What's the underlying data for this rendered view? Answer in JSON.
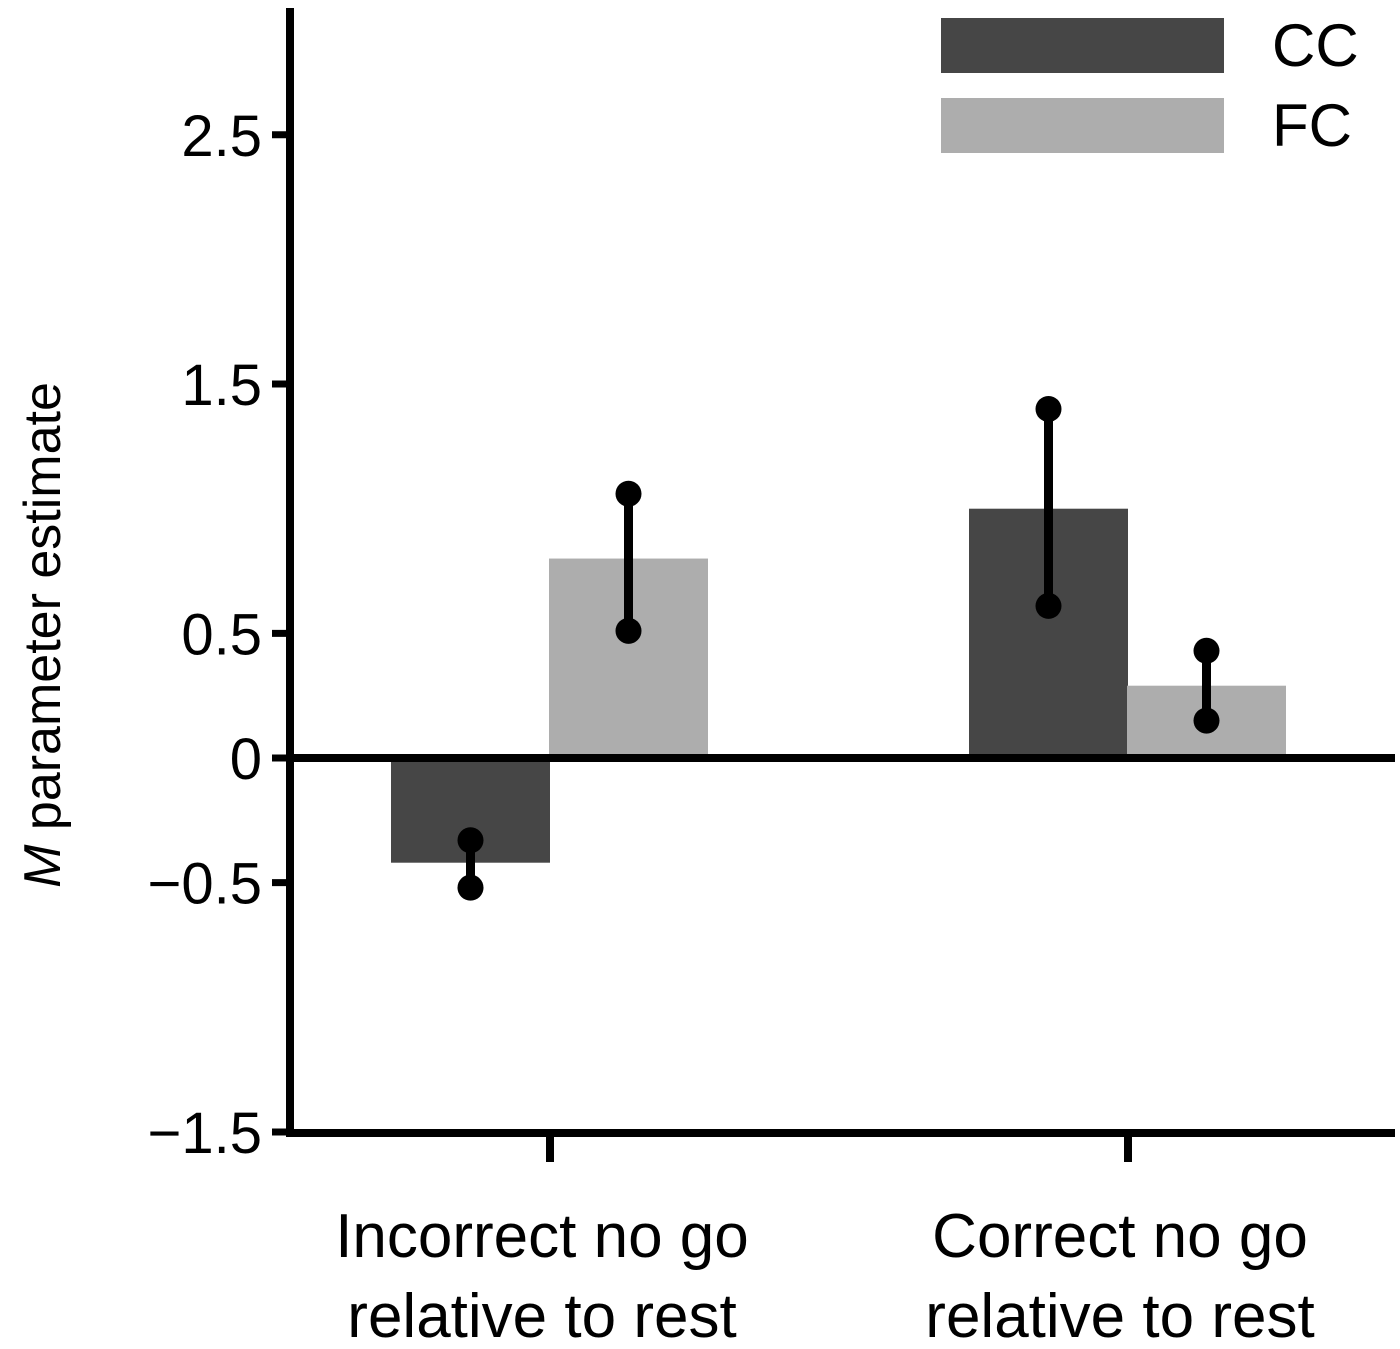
{
  "chart_data": {
    "type": "bar",
    "title": "",
    "xlabel": "",
    "ylabel_italic": "M",
    "ylabel_rest": " parameter estimate",
    "ylim": [
      -1.5,
      3.0
    ],
    "yticks": [
      -1.5,
      -0.5,
      0,
      0.5,
      1.5,
      2.5
    ],
    "ytick_labels": [
      "−1.5",
      "−0.5",
      "0",
      "0.5",
      "1.5",
      "2.5"
    ],
    "grid": false,
    "legend_position": "top-right",
    "categories": [
      [
        "Incorrect no go",
        "relative to rest"
      ],
      [
        "Correct no go",
        "relative to rest"
      ]
    ],
    "series": [
      {
        "name": "CC",
        "color": "#464646",
        "values": [
          -0.42,
          1.0
        ],
        "error_low": [
          -0.52,
          0.61
        ],
        "error_high": [
          -0.33,
          1.4
        ]
      },
      {
        "name": "FC",
        "color": "#adadad",
        "values": [
          0.8,
          0.29
        ],
        "error_low": [
          0.51,
          0.15
        ],
        "error_high": [
          1.06,
          0.43
        ]
      }
    ]
  }
}
